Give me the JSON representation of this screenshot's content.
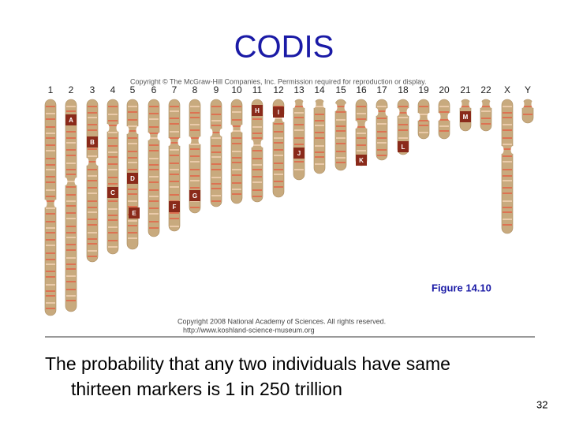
{
  "title": "CODIS",
  "figure": {
    "copyright_top": "Copyright © The McGraw-Hill Companies, Inc. Permission required for reproduction or display.",
    "chromosome_labels": [
      "1",
      "2",
      "3",
      "4",
      "5",
      "6",
      "7",
      "8",
      "9",
      "10",
      "11",
      "12",
      "13",
      "14",
      "15",
      "16",
      "17",
      "18",
      "19",
      "20",
      "21",
      "22",
      "X",
      "Y"
    ],
    "markers": [
      "A",
      "B",
      "C",
      "D",
      "E",
      "F",
      "G",
      "H",
      "I",
      "J",
      "K",
      "L",
      "M"
    ],
    "caption": "Figure 14.10",
    "credit": [
      "Copyright 2008 National Academy of Sciences. All rights reserved.",
      "http://www.koshland-science-museum.org"
    ]
  },
  "body": [
    "The probability that any two individuals have same",
    "thirteen markers is 1 in 250 trillion"
  ],
  "page_number": "32"
}
